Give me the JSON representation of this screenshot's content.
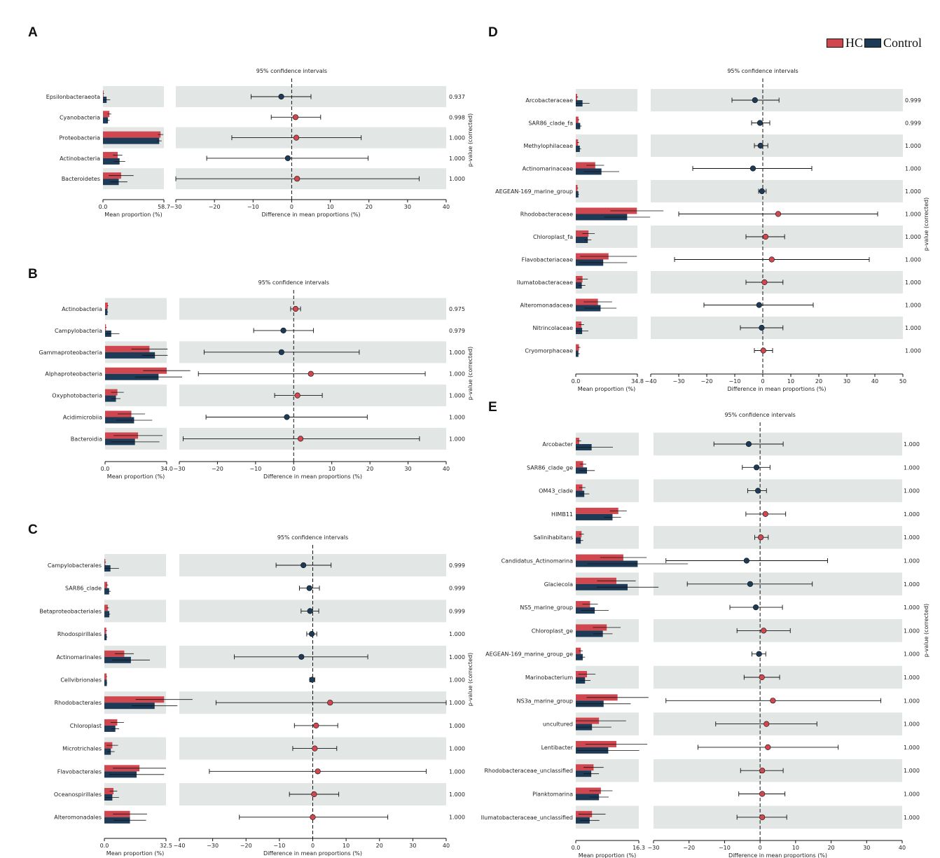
{
  "legend": {
    "hc_label": "HC",
    "control_label": "Control"
  },
  "colors": {
    "hc": "#d1474f",
    "control": "#1d3a57",
    "band": "#e2e6e5"
  },
  "common": {
    "ci_title": "95% confidence intervals",
    "mean_axis_label": "Mean proportion (%)",
    "diff_axis_label": "Difference in mean proportions (%)",
    "pvalue_label": "p-value (corrected)"
  },
  "chart_data": [
    {
      "panel": "A",
      "type": "bar",
      "mean_max": 58.7,
      "mean_ticks": [
        "0.0",
        "58.7"
      ],
      "diff_range": [
        -30,
        40
      ],
      "diff_ticks": [
        -30,
        -20,
        -10,
        0,
        10,
        20,
        30,
        40
      ],
      "pvalue_side": "right",
      "rows": [
        {
          "name": "Epsilonbacteraeota",
          "hc": 0.6,
          "hc_err": 0.4,
          "control": 3.5,
          "control_err": 3.5,
          "diff": -2.7,
          "ci": [
            -10.5,
            5.0
          ],
          "p": "0.937",
          "higher": "control"
        },
        {
          "name": "Cyanobacteria",
          "hc": 6.2,
          "hc_err": 1.8,
          "control": 4.8,
          "control_err": 1.6,
          "diff": 1.0,
          "ci": [
            -5.3,
            7.5
          ],
          "p": "0.998",
          "higher": "hc"
        },
        {
          "name": "Proteobacteria",
          "hc": 55.5,
          "hc_err": 2.6,
          "control": 54.2,
          "control_err": 2.3,
          "diff": 1.2,
          "ci": [
            -15.5,
            18.0
          ],
          "p": "1.000",
          "higher": "hc"
        },
        {
          "name": "Actinobacteria",
          "hc": 14.2,
          "hc_err": 4.5,
          "control": 16.0,
          "control_err": 5.5,
          "diff": -1.0,
          "ci": [
            -22.0,
            19.8
          ],
          "p": "1.000",
          "higher": "control"
        },
        {
          "name": "Bacteroidetes",
          "hc": 17.5,
          "hc_err": 12.0,
          "control": 15.2,
          "control_err": 8.3,
          "diff": 1.4,
          "ci": [
            -30,
            33.0
          ],
          "p": "1.000",
          "higher": "hc"
        }
      ]
    },
    {
      "panel": "B",
      "type": "bar",
      "mean_max": 34.0,
      "mean_ticks": [
        "0.0",
        "34.0"
      ],
      "diff_range": [
        -30,
        40
      ],
      "diff_ticks": [
        -30,
        -20,
        -10,
        0,
        10,
        20,
        30,
        40
      ],
      "pvalue_side": "right",
      "rows": [
        {
          "name": "Actinobacteria",
          "hc": 1.5,
          "hc_err": 0.3,
          "control": 1.3,
          "control_err": 0.3,
          "diff": 0.5,
          "ci": [
            -0.8,
            1.8
          ],
          "p": "0.975",
          "higher": "hc"
        },
        {
          "name": "Campylobacteria",
          "hc": 0.5,
          "hc_err": 0.3,
          "control": 3.4,
          "control_err": 4.5,
          "diff": -2.7,
          "ci": [
            -10.5,
            5.2
          ],
          "p": "0.979",
          "higher": "control"
        },
        {
          "name": "Gammaproteobacteria",
          "hc": 24.5,
          "hc_err": 10.0,
          "control": 27.5,
          "control_err": 7.0,
          "diff": -3.2,
          "ci": [
            -23.5,
            17.2
          ],
          "p": "1.000",
          "higher": "control"
        },
        {
          "name": "Alphaproteobacteria",
          "hc": 34.0,
          "hc_err": 13.0,
          "control": 29.5,
          "control_err": 13.0,
          "diff": 4.5,
          "ci": [
            -25.0,
            34.5
          ],
          "p": "1.000",
          "higher": "hc"
        },
        {
          "name": "Oxyphotobacteria",
          "hc": 6.8,
          "hc_err": 3.5,
          "control": 6.0,
          "control_err": 2.5,
          "diff": 1.0,
          "ci": [
            -5.0,
            7.5
          ],
          "p": "1.000",
          "higher": "hc"
        },
        {
          "name": "Acidimicrobiia",
          "hc": 14.5,
          "hc_err": 7.5,
          "control": 16.0,
          "control_err": 10.0,
          "diff": -1.8,
          "ci": [
            -23.0,
            19.3
          ],
          "p": "1.000",
          "higher": "control"
        },
        {
          "name": "Bacteroidia",
          "hc": 18.2,
          "hc_err": 13.5,
          "control": 16.5,
          "control_err": 13.5,
          "diff": 1.8,
          "ci": [
            -29.0,
            33.0
          ],
          "p": "1.000",
          "higher": "hc"
        }
      ]
    },
    {
      "panel": "C",
      "type": "bar",
      "mean_max": 32.5,
      "mean_ticks": [
        "0.0",
        "32.5"
      ],
      "diff_range": [
        -40,
        40
      ],
      "diff_ticks": [
        -40,
        -30,
        -20,
        -10,
        0,
        10,
        20,
        30,
        40
      ],
      "pvalue_side": "right",
      "rows": [
        {
          "name": "Campylobacterales",
          "hc": 0.5,
          "hc_err": 0.3,
          "control": 3.2,
          "control_err": 4.5,
          "diff": -2.8,
          "ci": [
            -11.0,
            5.5
          ],
          "p": "0.999",
          "higher": "control"
        },
        {
          "name": "SAR86_clade",
          "hc": 1.5,
          "hc_err": 0.5,
          "control": 2.5,
          "control_err": 0.8,
          "diff": -1.0,
          "ci": [
            -4.0,
            2.0
          ],
          "p": "0.999",
          "higher": "control"
        },
        {
          "name": "Betaproteobacteriales",
          "hc": 1.8,
          "hc_err": 0.6,
          "control": 2.6,
          "control_err": 0.5,
          "diff": -0.8,
          "ci": [
            -3.5,
            1.8
          ],
          "p": "0.999",
          "higher": "control"
        },
        {
          "name": "Rhodospirillales",
          "hc": 1.0,
          "hc_err": 0.3,
          "control": 1.2,
          "control_err": 0.3,
          "diff": -0.3,
          "ci": [
            -1.8,
            1.2
          ],
          "p": "1.000",
          "higher": "control"
        },
        {
          "name": "Actinomarinales",
          "hc": 10.5,
          "hc_err": 5.0,
          "control": 14.0,
          "control_err": 10.0,
          "diff": -3.4,
          "ci": [
            -23.5,
            16.5
          ],
          "p": "1.000",
          "higher": "control"
        },
        {
          "name": "Cellvibrionales",
          "hc": 1.2,
          "hc_err": 0.2,
          "control": 1.3,
          "control_err": 0.2,
          "diff": -0.2,
          "ci": [
            -0.9,
            0.6
          ],
          "p": "1.000",
          "higher": "control"
        },
        {
          "name": "Rhodobacterales",
          "hc": 31.5,
          "hc_err": 15.0,
          "control": 26.5,
          "control_err": 12.0,
          "diff": 5.2,
          "ci": [
            -29.0,
            40.0
          ],
          "p": "1.000",
          "higher": "hc"
        },
        {
          "name": "Chloroplast",
          "hc": 6.8,
          "hc_err": 3.5,
          "control": 5.8,
          "control_err": 2.0,
          "diff": 1.0,
          "ci": [
            -5.5,
            7.5
          ],
          "p": "1.000",
          "higher": "hc"
        },
        {
          "name": "Microtrichales",
          "hc": 4.2,
          "hc_err": 3.0,
          "control": 3.4,
          "control_err": 2.0,
          "diff": 0.6,
          "ci": [
            -6.0,
            7.2
          ],
          "p": "1.000",
          "higher": "hc"
        },
        {
          "name": "Flavobacterales",
          "hc": 18.5,
          "hc_err": 14.0,
          "control": 17.0,
          "control_err": 14.5,
          "diff": 1.5,
          "ci": [
            -31.0,
            34.0
          ],
          "p": "1.000",
          "higher": "hc"
        },
        {
          "name": "Oceanospirillales",
          "hc": 4.8,
          "hc_err": 2.0,
          "control": 4.2,
          "control_err": 3.5,
          "diff": 0.4,
          "ci": [
            -7.0,
            7.8
          ],
          "p": "1.000",
          "higher": "hc"
        },
        {
          "name": "Alteromonadales",
          "hc": 13.5,
          "hc_err": 9.0,
          "control": 13.5,
          "control_err": 8.5,
          "diff": 0.0,
          "ci": [
            -22.0,
            22.5
          ],
          "p": "1.000",
          "higher": "hc"
        }
      ]
    },
    {
      "panel": "D",
      "type": "bar",
      "mean_max": 34.8,
      "mean_ticks": [
        "0.0",
        "34.8"
      ],
      "diff_range": [
        -40,
        50
      ],
      "diff_ticks": [
        -40,
        -30,
        -20,
        -10,
        0,
        10,
        20,
        30,
        40,
        50
      ],
      "pvalue_side": "right",
      "rows": [
        {
          "name": "Arcobacteraceae",
          "hc": 0.8,
          "hc_err": 0.5,
          "control": 3.8,
          "control_err": 4.0,
          "diff": -2.8,
          "ci": [
            -11.0,
            5.8
          ],
          "p": "0.999",
          "higher": "control"
        },
        {
          "name": "SAR86_clade_fa",
          "hc": 1.5,
          "hc_err": 0.5,
          "control": 2.5,
          "control_err": 0.8,
          "diff": -1.0,
          "ci": [
            -4.0,
            2.5
          ],
          "p": "0.999",
          "higher": "control"
        },
        {
          "name": "Methylophilaceae",
          "hc": 1.3,
          "hc_err": 0.5,
          "control": 2.3,
          "control_err": 0.7,
          "diff": -0.8,
          "ci": [
            -3.0,
            1.8
          ],
          "p": "1.000",
          "higher": "control"
        },
        {
          "name": "Actinomarinaceae",
          "hc": 11.0,
          "hc_err": 5.0,
          "control": 14.5,
          "control_err": 10.0,
          "diff": -3.5,
          "ci": [
            -25.0,
            17.5
          ],
          "p": "1.000",
          "higher": "control"
        },
        {
          "name": "AEGEAN-169_marine_group",
          "hc": 1.0,
          "hc_err": 0.3,
          "control": 1.5,
          "control_err": 0.3,
          "diff": -0.3,
          "ci": [
            -1.5,
            1.2
          ],
          "p": "1.000",
          "higher": "control"
        },
        {
          "name": "Rhodobacteraceae",
          "hc": 34.5,
          "hc_err": 15.0,
          "control": 29.0,
          "control_err": 13.0,
          "diff": 5.5,
          "ci": [
            -30.0,
            41.0
          ],
          "p": "1.000",
          "higher": "hc"
        },
        {
          "name": "Chloroplast_fa",
          "hc": 7.2,
          "hc_err": 3.5,
          "control": 6.8,
          "control_err": 2.0,
          "diff": 1.0,
          "ci": [
            -6.0,
            7.8
          ],
          "p": "1.000",
          "higher": "hc"
        },
        {
          "name": "Flavobacteriaceae",
          "hc": 18.5,
          "hc_err": 16.0,
          "control": 15.5,
          "control_err": 13.5,
          "diff": 3.2,
          "ci": [
            -31.5,
            38.0
          ],
          "p": "1.000",
          "higher": "hc"
        },
        {
          "name": "Ilumatobacteraceae",
          "hc": 3.8,
          "hc_err": 3.0,
          "control": 3.4,
          "control_err": 2.0,
          "diff": 0.6,
          "ci": [
            -6.0,
            7.2
          ],
          "p": "1.000",
          "higher": "hc"
        },
        {
          "name": "Alteromonadaceae",
          "hc": 12.5,
          "hc_err": 8.0,
          "control": 14.0,
          "control_err": 9.0,
          "diff": -1.3,
          "ci": [
            -21.0,
            18.0
          ],
          "p": "1.000",
          "higher": "control"
        },
        {
          "name": "Nitrincolaceae",
          "hc": 3.2,
          "hc_err": 1.5,
          "control": 3.6,
          "control_err": 3.5,
          "diff": -0.4,
          "ci": [
            -8.0,
            7.2
          ],
          "p": "1.000",
          "higher": "control"
        },
        {
          "name": "Cryomorphaceae",
          "hc": 1.8,
          "hc_err": 0.8,
          "control": 1.5,
          "control_err": 0.8,
          "diff": 0.2,
          "ci": [
            -3.0,
            3.5
          ],
          "p": "1.000",
          "higher": "hc"
        }
      ]
    },
    {
      "panel": "E",
      "type": "bar",
      "mean_max": 16.3,
      "mean_ticks": [
        "0.0",
        "16.3"
      ],
      "diff_range": [
        -30,
        40
      ],
      "diff_ticks": [
        -30,
        -20,
        -10,
        0,
        10,
        20,
        30,
        40
      ],
      "pvalue_side": "right",
      "rows": [
        {
          "name": "Arcobacter",
          "hc": 0.9,
          "hc_err": 0.5,
          "control": 4.1,
          "control_err": 5.5,
          "diff": -3.2,
          "ci": [
            -13.0,
            6.5
          ],
          "p": "1.000",
          "higher": "control"
        },
        {
          "name": "SAR86_clade_ge",
          "hc": 1.9,
          "hc_err": 0.8,
          "control": 2.9,
          "control_err": 2.0,
          "diff": -1.0,
          "ci": [
            -5.0,
            2.8
          ],
          "p": "1.000",
          "higher": "control"
        },
        {
          "name": "OM43_clade",
          "hc": 1.7,
          "hc_err": 0.8,
          "control": 2.2,
          "control_err": 1.3,
          "diff": -0.6,
          "ci": [
            -3.5,
            1.8
          ],
          "p": "1.000",
          "higher": "control"
        },
        {
          "name": "HIMB11",
          "hc": 11.0,
          "hc_err": 2.2,
          "control": 9.5,
          "control_err": 2.2,
          "diff": 1.5,
          "ci": [
            -4.0,
            7.2
          ],
          "p": "1.000",
          "higher": "hc"
        },
        {
          "name": "Salinihabitans",
          "hc": 1.5,
          "hc_err": 0.6,
          "control": 1.3,
          "control_err": 0.6,
          "diff": 0.2,
          "ci": [
            -1.5,
            2.3
          ],
          "p": "1.000",
          "higher": "hc"
        },
        {
          "name": "Candidatus_Actinomarina",
          "hc": 12.3,
          "hc_err": 6.0,
          "control": 16.0,
          "control_err": 13.0,
          "diff": -3.8,
          "ci": [
            -26.5,
            19.0
          ],
          "p": "1.000",
          "higher": "control"
        },
        {
          "name": "Glaciecola",
          "hc": 10.5,
          "hc_err": 5.0,
          "control": 13.4,
          "control_err": 8.0,
          "diff": -2.8,
          "ci": [
            -20.5,
            14.7
          ],
          "p": "1.000",
          "higher": "control"
        },
        {
          "name": "NS5_marine_group",
          "hc": 3.7,
          "hc_err": 2.0,
          "control": 4.9,
          "control_err": 3.6,
          "diff": -1.2,
          "ci": [
            -8.5,
            6.3
          ],
          "p": "1.000",
          "higher": "control"
        },
        {
          "name": "Chloroplast_ge",
          "hc": 8.0,
          "hc_err": 3.6,
          "control": 7.0,
          "control_err": 2.5,
          "diff": 1.0,
          "ci": [
            -6.5,
            8.5
          ],
          "p": "1.000",
          "higher": "hc"
        },
        {
          "name": "AEGEAN-169_marine_group_ge",
          "hc": 1.3,
          "hc_err": 0.5,
          "control": 1.8,
          "control_err": 0.6,
          "diff": -0.3,
          "ci": [
            -2.3,
            1.6
          ],
          "p": "1.000",
          "higher": "control"
        },
        {
          "name": "Marinobacterium",
          "hc": 2.9,
          "hc_err": 2.2,
          "control": 2.4,
          "control_err": 1.4,
          "diff": 0.5,
          "ci": [
            -4.5,
            5.5
          ],
          "p": "1.000",
          "higher": "hc"
        },
        {
          "name": "NS3a_marine_group",
          "hc": 10.8,
          "hc_err": 8.0,
          "control": 7.2,
          "control_err": 7.0,
          "diff": 3.6,
          "ci": [
            -26.5,
            34.0
          ],
          "p": "1.000",
          "higher": "hc"
        },
        {
          "name": "uncultured",
          "hc": 6.0,
          "hc_err": 7.0,
          "control": 4.2,
          "control_err": 5.0,
          "diff": 1.8,
          "ci": [
            -12.5,
            16.0
          ],
          "p": "1.000",
          "higher": "hc"
        },
        {
          "name": "Lentibacter",
          "hc": 10.5,
          "hc_err": 8.0,
          "control": 8.4,
          "control_err": 8.0,
          "diff": 2.2,
          "ci": [
            -17.5,
            22.0
          ],
          "p": "1.000",
          "higher": "hc"
        },
        {
          "name": "Rhodobacteraceae_unclassified",
          "hc": 4.6,
          "hc_err": 2.6,
          "control": 4.0,
          "control_err": 2.0,
          "diff": 0.6,
          "ci": [
            -5.5,
            6.5
          ],
          "p": "1.000",
          "higher": "hc"
        },
        {
          "name": "Planktomarina",
          "hc": 6.5,
          "hc_err": 3.0,
          "control": 6.0,
          "control_err": 2.5,
          "diff": 0.6,
          "ci": [
            -6.0,
            7.0
          ],
          "p": "1.000",
          "higher": "hc"
        },
        {
          "name": "Ilumatobacteraceae_unclassified",
          "hc": 4.2,
          "hc_err": 3.5,
          "control": 3.6,
          "control_err": 2.5,
          "diff": 0.6,
          "ci": [
            -6.5,
            7.5
          ],
          "p": "1.000",
          "higher": "hc"
        }
      ]
    }
  ]
}
